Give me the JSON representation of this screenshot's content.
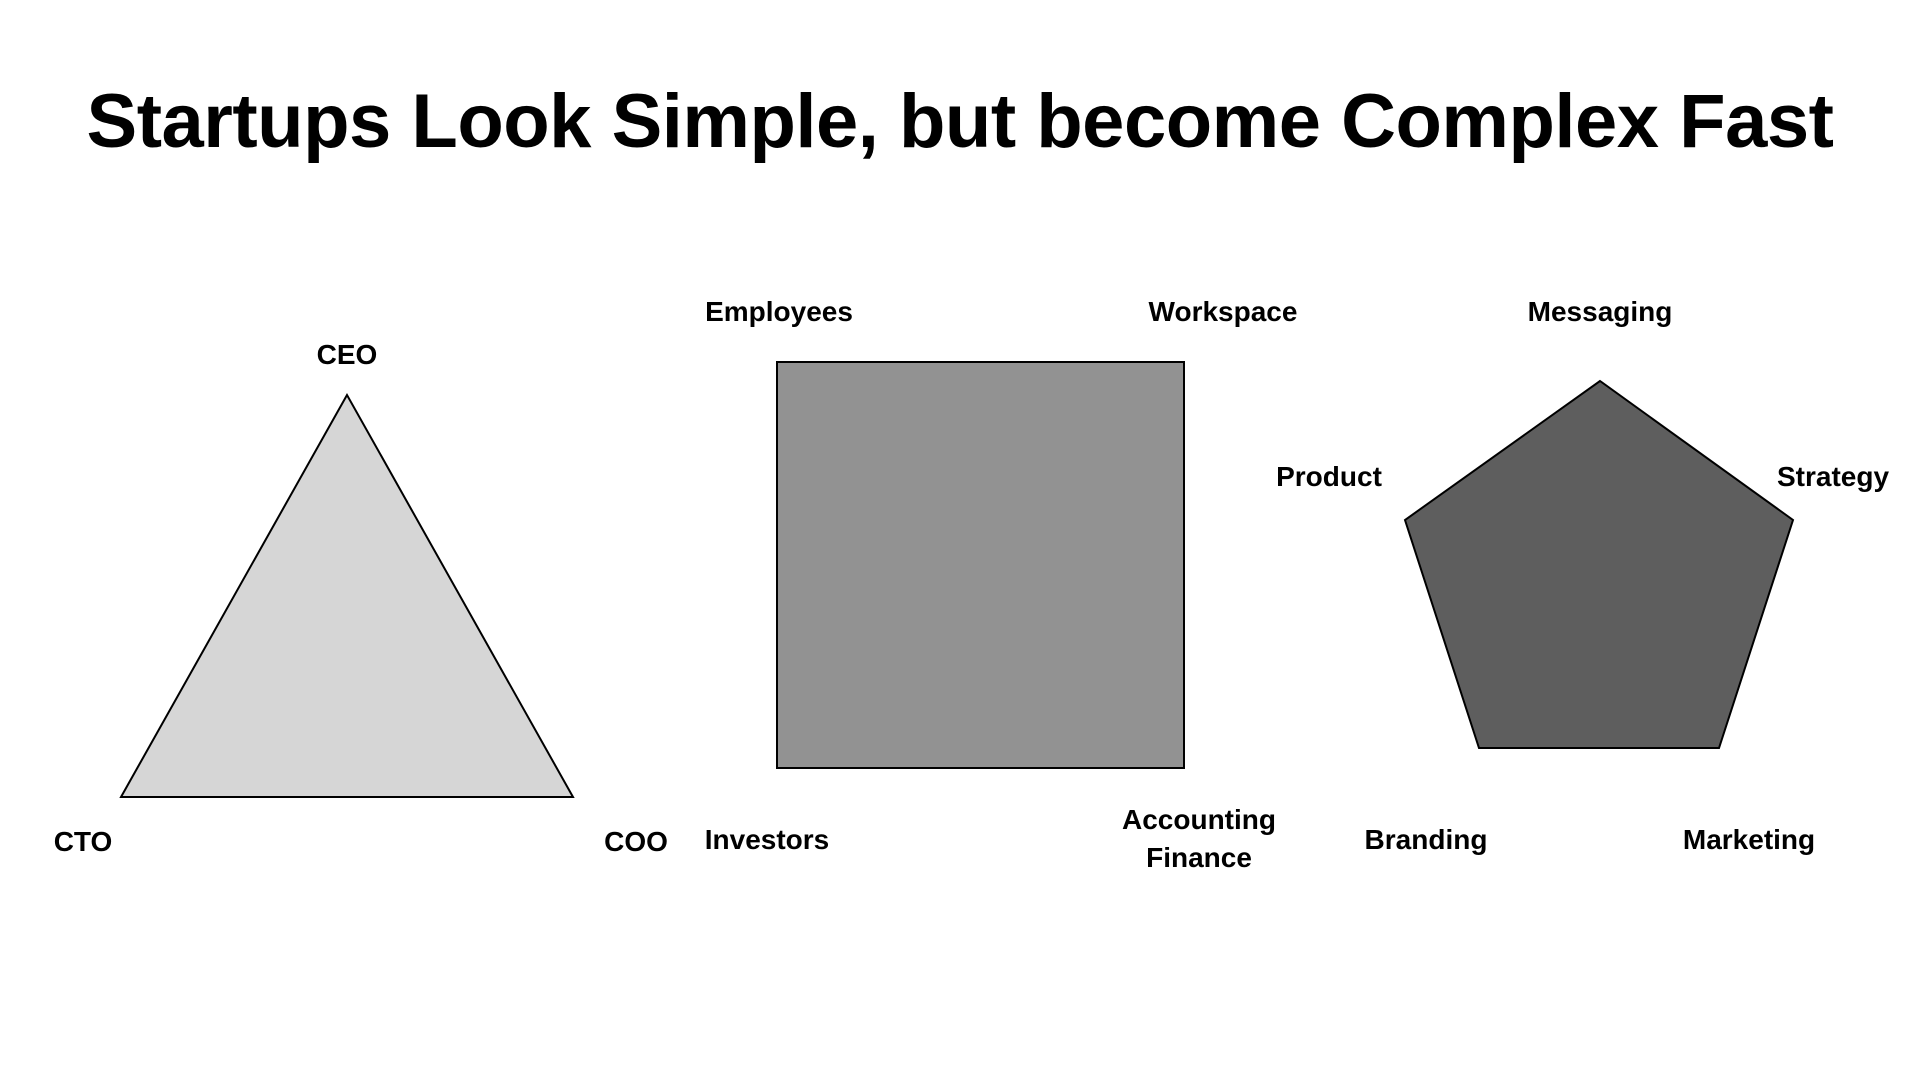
{
  "title": "Startups Look Simple, but become Complex Fast",
  "colors": {
    "triangle_fill": "#d6d6d6",
    "square_fill": "#929292",
    "pentagon_fill": "#5e5e5e",
    "stroke": "#000000"
  },
  "triangle": {
    "top": "CEO",
    "bottom_left": "CTO",
    "bottom_right": "COO"
  },
  "square": {
    "top_left": "Employees",
    "top_right": "Workspace",
    "bottom_left": "Investors",
    "bottom_right_line1": "Accounting",
    "bottom_right_line2": "Finance"
  },
  "pentagon": {
    "top": "Messaging",
    "upper_left": "Product",
    "upper_right": "Strategy",
    "lower_left": "Branding",
    "lower_right": "Marketing"
  }
}
